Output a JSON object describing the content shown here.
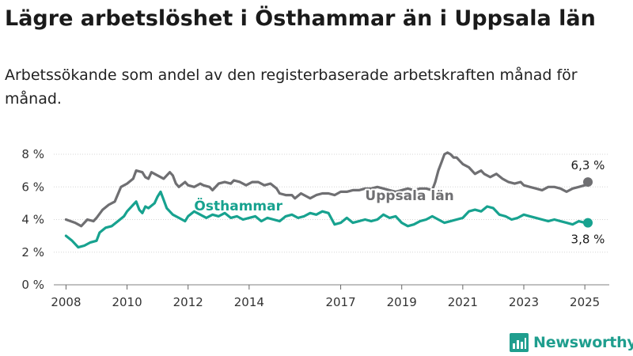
{
  "title": "Lägre arbetslöshet i Östhammar än i Uppsala län",
  "subtitle": "Arbetssökande som andel av den registerbaserade arbetskraften månad för månad.",
  "brand": "Newsworthy",
  "colors": {
    "osthammar": "#17a28f",
    "uppsala": "#6f6f72",
    "grid": "#d6d6d6",
    "brand": "#1f9e8e"
  },
  "chart_data": {
    "type": "line",
    "title": "Lägre arbetslöshet i Östhammar än i Uppsala län",
    "subtitle": "Arbetssökande som andel av den registerbaserade arbetskraften månad för månad.",
    "xlabel": "",
    "ylabel": "",
    "xlim": [
      2007.6,
      2025.8
    ],
    "ylim": [
      0,
      8
    ],
    "x_ticks": [
      {
        "value": 2008,
        "label": "2008"
      },
      {
        "value": 2010,
        "label": "2010"
      },
      {
        "value": 2012,
        "label": "2012"
      },
      {
        "value": 2014,
        "label": "2014"
      },
      {
        "value": 2017,
        "label": "2017"
      },
      {
        "value": 2019,
        "label": "2019"
      },
      {
        "value": 2021,
        "label": "2021"
      },
      {
        "value": 2023,
        "label": "2023"
      },
      {
        "value": 2025,
        "label": "2025"
      }
    ],
    "y_ticks": [
      {
        "value": 0,
        "label": "0 %"
      },
      {
        "value": 2,
        "label": "2 %"
      },
      {
        "value": 4,
        "label": "4 %"
      },
      {
        "value": 6,
        "label": "6 %"
      },
      {
        "value": 8,
        "label": "8 %"
      }
    ],
    "grid": "horizontal",
    "series": [
      {
        "name": "Uppsala län",
        "color": "#6f6f72",
        "end_value_label": "6,3 %",
        "points": [
          [
            2008.0,
            4.0
          ],
          [
            2008.3,
            3.8
          ],
          [
            2008.5,
            3.6
          ],
          [
            2008.7,
            4.0
          ],
          [
            2008.9,
            3.9
          ],
          [
            2009.0,
            4.1
          ],
          [
            2009.2,
            4.6
          ],
          [
            2009.4,
            4.9
          ],
          [
            2009.6,
            5.1
          ],
          [
            2009.8,
            6.0
          ],
          [
            2010.0,
            6.2
          ],
          [
            2010.2,
            6.5
          ],
          [
            2010.3,
            7.0
          ],
          [
            2010.5,
            6.9
          ],
          [
            2010.6,
            6.6
          ],
          [
            2010.7,
            6.5
          ],
          [
            2010.8,
            6.9
          ],
          [
            2011.0,
            6.7
          ],
          [
            2011.2,
            6.5
          ],
          [
            2011.4,
            6.9
          ],
          [
            2011.5,
            6.7
          ],
          [
            2011.6,
            6.2
          ],
          [
            2011.7,
            6.0
          ],
          [
            2011.9,
            6.3
          ],
          [
            2012.0,
            6.1
          ],
          [
            2012.2,
            6.0
          ],
          [
            2012.4,
            6.2
          ],
          [
            2012.5,
            6.1
          ],
          [
            2012.7,
            6.0
          ],
          [
            2012.8,
            5.8
          ],
          [
            2013.0,
            6.2
          ],
          [
            2013.2,
            6.3
          ],
          [
            2013.4,
            6.2
          ],
          [
            2013.5,
            6.4
          ],
          [
            2013.7,
            6.3
          ],
          [
            2013.9,
            6.1
          ],
          [
            2014.1,
            6.3
          ],
          [
            2014.3,
            6.3
          ],
          [
            2014.5,
            6.1
          ],
          [
            2014.7,
            6.2
          ],
          [
            2014.9,
            5.9
          ],
          [
            2015.0,
            5.6
          ],
          [
            2015.2,
            5.5
          ],
          [
            2015.4,
            5.5
          ],
          [
            2015.5,
            5.3
          ],
          [
            2015.7,
            5.6
          ],
          [
            2015.9,
            5.4
          ],
          [
            2016.0,
            5.3
          ],
          [
            2016.2,
            5.5
          ],
          [
            2016.4,
            5.6
          ],
          [
            2016.6,
            5.6
          ],
          [
            2016.8,
            5.5
          ],
          [
            2017.0,
            5.7
          ],
          [
            2017.2,
            5.7
          ],
          [
            2017.4,
            5.8
          ],
          [
            2017.6,
            5.8
          ],
          [
            2017.8,
            5.9
          ],
          [
            2018.0,
            5.9
          ],
          [
            2018.2,
            6.0
          ],
          [
            2018.4,
            5.9
          ],
          [
            2018.6,
            5.8
          ],
          [
            2018.8,
            5.7
          ],
          [
            2019.0,
            5.8
          ],
          [
            2019.2,
            5.9
          ],
          [
            2019.4,
            5.8
          ],
          [
            2019.6,
            5.9
          ],
          [
            2019.8,
            5.9
          ],
          [
            2020.0,
            5.8
          ],
          [
            2020.1,
            6.3
          ],
          [
            2020.2,
            7.0
          ],
          [
            2020.3,
            7.5
          ],
          [
            2020.4,
            8.0
          ],
          [
            2020.5,
            8.1
          ],
          [
            2020.6,
            8.0
          ],
          [
            2020.7,
            7.8
          ],
          [
            2020.8,
            7.8
          ],
          [
            2020.9,
            7.6
          ],
          [
            2021.0,
            7.4
          ],
          [
            2021.1,
            7.3
          ],
          [
            2021.2,
            7.2
          ],
          [
            2021.3,
            7.0
          ],
          [
            2021.4,
            6.8
          ],
          [
            2021.5,
            6.9
          ],
          [
            2021.6,
            7.0
          ],
          [
            2021.7,
            6.8
          ],
          [
            2021.9,
            6.6
          ],
          [
            2022.0,
            6.7
          ],
          [
            2022.1,
            6.8
          ],
          [
            2022.3,
            6.5
          ],
          [
            2022.5,
            6.3
          ],
          [
            2022.7,
            6.2
          ],
          [
            2022.9,
            6.3
          ],
          [
            2023.0,
            6.1
          ],
          [
            2023.2,
            6.0
          ],
          [
            2023.4,
            5.9
          ],
          [
            2023.6,
            5.8
          ],
          [
            2023.8,
            6.0
          ],
          [
            2024.0,
            6.0
          ],
          [
            2024.2,
            5.9
          ],
          [
            2024.4,
            5.7
          ],
          [
            2024.6,
            5.9
          ],
          [
            2024.8,
            6.0
          ],
          [
            2025.0,
            6.1
          ],
          [
            2025.1,
            6.3
          ]
        ]
      },
      {
        "name": "Östhammar",
        "color": "#17a28f",
        "end_value_label": "3,8 %",
        "points": [
          [
            2008.0,
            3.0
          ],
          [
            2008.2,
            2.7
          ],
          [
            2008.4,
            2.3
          ],
          [
            2008.6,
            2.4
          ],
          [
            2008.8,
            2.6
          ],
          [
            2009.0,
            2.7
          ],
          [
            2009.1,
            3.2
          ],
          [
            2009.3,
            3.5
          ],
          [
            2009.5,
            3.6
          ],
          [
            2009.7,
            3.9
          ],
          [
            2009.9,
            4.2
          ],
          [
            2010.0,
            4.5
          ],
          [
            2010.2,
            4.9
          ],
          [
            2010.3,
            5.1
          ],
          [
            2010.4,
            4.6
          ],
          [
            2010.5,
            4.4
          ],
          [
            2010.6,
            4.8
          ],
          [
            2010.7,
            4.7
          ],
          [
            2010.9,
            5.0
          ],
          [
            2011.0,
            5.4
          ],
          [
            2011.1,
            5.7
          ],
          [
            2011.2,
            5.2
          ],
          [
            2011.3,
            4.7
          ],
          [
            2011.5,
            4.3
          ],
          [
            2011.7,
            4.1
          ],
          [
            2011.9,
            3.9
          ],
          [
            2012.0,
            4.2
          ],
          [
            2012.2,
            4.5
          ],
          [
            2012.4,
            4.3
          ],
          [
            2012.6,
            4.1
          ],
          [
            2012.8,
            4.3
          ],
          [
            2013.0,
            4.2
          ],
          [
            2013.2,
            4.4
          ],
          [
            2013.4,
            4.1
          ],
          [
            2013.6,
            4.2
          ],
          [
            2013.8,
            4.0
          ],
          [
            2014.0,
            4.1
          ],
          [
            2014.2,
            4.2
          ],
          [
            2014.4,
            3.9
          ],
          [
            2014.6,
            4.1
          ],
          [
            2014.8,
            4.0
          ],
          [
            2015.0,
            3.9
          ],
          [
            2015.2,
            4.2
          ],
          [
            2015.4,
            4.3
          ],
          [
            2015.6,
            4.1
          ],
          [
            2015.8,
            4.2
          ],
          [
            2016.0,
            4.4
          ],
          [
            2016.2,
            4.3
          ],
          [
            2016.4,
            4.5
          ],
          [
            2016.6,
            4.4
          ],
          [
            2016.8,
            3.7
          ],
          [
            2017.0,
            3.8
          ],
          [
            2017.2,
            4.1
          ],
          [
            2017.4,
            3.8
          ],
          [
            2017.6,
            3.9
          ],
          [
            2017.8,
            4.0
          ],
          [
            2018.0,
            3.9
          ],
          [
            2018.2,
            4.0
          ],
          [
            2018.4,
            4.3
          ],
          [
            2018.6,
            4.1
          ],
          [
            2018.8,
            4.2
          ],
          [
            2019.0,
            3.8
          ],
          [
            2019.2,
            3.6
          ],
          [
            2019.4,
            3.7
          ],
          [
            2019.6,
            3.9
          ],
          [
            2019.8,
            4.0
          ],
          [
            2020.0,
            4.2
          ],
          [
            2020.2,
            4.0
          ],
          [
            2020.4,
            3.8
          ],
          [
            2020.6,
            3.9
          ],
          [
            2020.8,
            4.0
          ],
          [
            2021.0,
            4.1
          ],
          [
            2021.2,
            4.5
          ],
          [
            2021.4,
            4.6
          ],
          [
            2021.6,
            4.5
          ],
          [
            2021.8,
            4.8
          ],
          [
            2022.0,
            4.7
          ],
          [
            2022.2,
            4.3
          ],
          [
            2022.4,
            4.2
          ],
          [
            2022.6,
            4.0
          ],
          [
            2022.8,
            4.1
          ],
          [
            2023.0,
            4.3
          ],
          [
            2023.2,
            4.2
          ],
          [
            2023.4,
            4.1
          ],
          [
            2023.6,
            4.0
          ],
          [
            2023.8,
            3.9
          ],
          [
            2024.0,
            4.0
          ],
          [
            2024.2,
            3.9
          ],
          [
            2024.4,
            3.8
          ],
          [
            2024.6,
            3.7
          ],
          [
            2024.8,
            3.9
          ],
          [
            2025.0,
            3.8
          ],
          [
            2025.1,
            3.8
          ]
        ]
      }
    ]
  }
}
